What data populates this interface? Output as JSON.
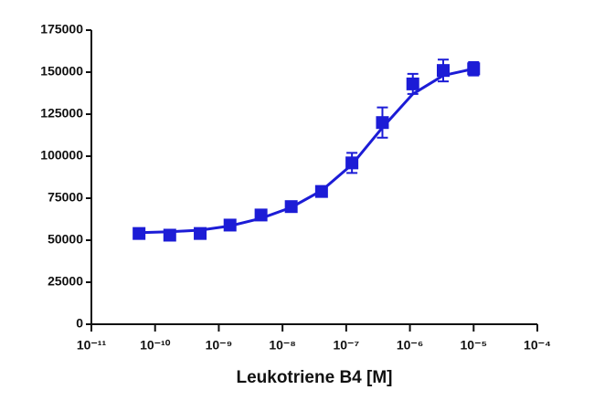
{
  "chart_data": {
    "type": "scatter",
    "x_label": "Leukotriene B4 [M]",
    "xlog": true,
    "xlim": [
      1e-11,
      0.0001
    ],
    "xticks": [
      {
        "value": 1e-11,
        "label": "10⁻¹¹"
      },
      {
        "value": 1e-10,
        "label": "10⁻¹⁰"
      },
      {
        "value": 1e-09,
        "label": "10⁻⁹"
      },
      {
        "value": 1e-08,
        "label": "10⁻⁸"
      },
      {
        "value": 1e-07,
        "label": "10⁻⁷"
      },
      {
        "value": 1e-06,
        "label": "10⁻⁶"
      },
      {
        "value": 1e-05,
        "label": "10⁻⁵"
      },
      {
        "value": 0.0001,
        "label": "10⁻⁴"
      }
    ],
    "ylim": [
      0,
      175000
    ],
    "yticks": [
      0,
      25000,
      50000,
      75000,
      100000,
      125000,
      150000,
      175000
    ],
    "series": [
      {
        "color": "#1c1cd6",
        "x": [
          5.6e-11,
          1.7e-10,
          5.1e-10,
          1.5e-09,
          4.6e-09,
          1.37e-08,
          4.1e-08,
          1.23e-07,
          3.7e-07,
          1.11e-06,
          3.33e-06,
          1e-05
        ],
        "values": [
          54000,
          53000,
          54000,
          59000,
          65000,
          70000,
          79000,
          96000,
          120000,
          143000,
          151000,
          152000
        ],
        "errors": [
          2000,
          2000,
          3000,
          2500,
          2500,
          2000,
          3000,
          6000,
          9000,
          6000,
          6500,
          4000
        ]
      }
    ],
    "fit": {
      "color": "#1c1cd6",
      "x": [
        5.6e-11,
        1.7e-10,
        5.1e-10,
        1.5e-09,
        4.6e-09,
        1.37e-08,
        4.1e-08,
        1.23e-07,
        3.7e-07,
        1.11e-06,
        3.33e-06,
        1e-05
      ],
      "values": [
        54500,
        55000,
        56000,
        58500,
        63000,
        69500,
        79500,
        95000,
        117000,
        137000,
        148000,
        152000
      ]
    }
  }
}
